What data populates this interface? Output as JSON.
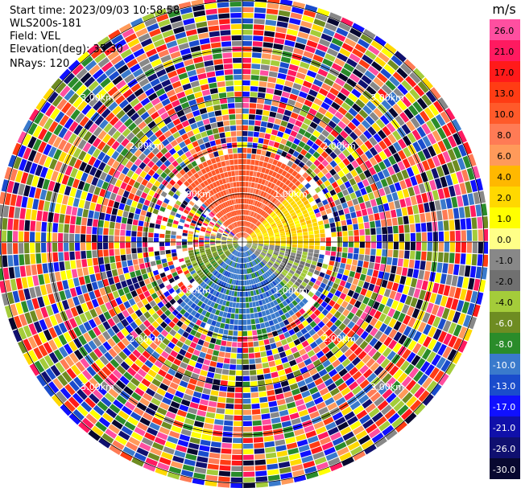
{
  "header": {
    "start_time": "Start time: 2023/09/03 10:58:58",
    "site": "WLS200s-181",
    "field": "Field: VEL",
    "elevation": "Elevation(deg): 35.30",
    "nrays": "NRays: 120"
  },
  "colorbar": {
    "unit": "m/s",
    "ticks": [
      "26.0",
      "21.0",
      "17.0",
      "13.0",
      "10.0",
      "8.0",
      "6.0",
      "4.0",
      "2.0",
      "1.0",
      "0.0",
      "-1.0",
      "-2.0",
      "-4.0",
      "-6.0",
      "-8.0",
      "-10.0",
      "-13.0",
      "-17.0",
      "-21.0",
      "-26.0",
      "-30.0"
    ],
    "colors": [
      "#ff4fa0",
      "#ff1a60",
      "#ff1a1a",
      "#ff3c14",
      "#ff5a2a",
      "#ff7b55",
      "#ff9a5a",
      "#ffb800",
      "#ffd800",
      "#ffff00",
      "#ffff88",
      "#888888",
      "#707070",
      "#a4cc3a",
      "#6e8c22",
      "#2a8c2a",
      "#3a7acc",
      "#1a4ccc",
      "#1010ff",
      "#1010aa",
      "#101070",
      "#080830"
    ]
  },
  "ring_labels": [
    "1.00km",
    "2.00km",
    "3.00km"
  ],
  "chart_data": {
    "type": "heatmap",
    "title": "",
    "field": "VEL",
    "unit": "m/s",
    "n_rays": 120,
    "ring_distances_km": [
      1.0,
      2.0,
      3.0
    ],
    "value_range": [
      -30.0,
      26.0
    ],
    "sectors": [
      {
        "azimuth_range_deg": [
          315,
          45
        ],
        "range_km": [
          0.0,
          1.8
        ],
        "approx_value": 11.0,
        "description_color": "orange-red"
      },
      {
        "azimuth_range_deg": [
          45,
          95
        ],
        "range_km": [
          0.0,
          1.6
        ],
        "approx_value": 3.0,
        "description_color": "yellow"
      },
      {
        "azimuth_range_deg": [
          95,
          135
        ],
        "range_km": [
          0.0,
          1.6
        ],
        "approx_value": -1.5,
        "description_color": "green"
      },
      {
        "azimuth_range_deg": [
          135,
          225
        ],
        "range_km": [
          0.0,
          1.9
        ],
        "approx_value": -9.0,
        "description_color": "blue"
      },
      {
        "azimuth_range_deg": [
          225,
          260
        ],
        "range_km": [
          0.0,
          1.2
        ],
        "approx_value": -5.0,
        "description_color": "green"
      },
      {
        "azimuth_range_deg": [
          260,
          290
        ],
        "range_km": [
          0.0,
          0.6
        ],
        "approx_value": 0.0,
        "description_color": "gray"
      }
    ],
    "outer_region": "noisy (random colors) beyond ~1.8 km"
  }
}
